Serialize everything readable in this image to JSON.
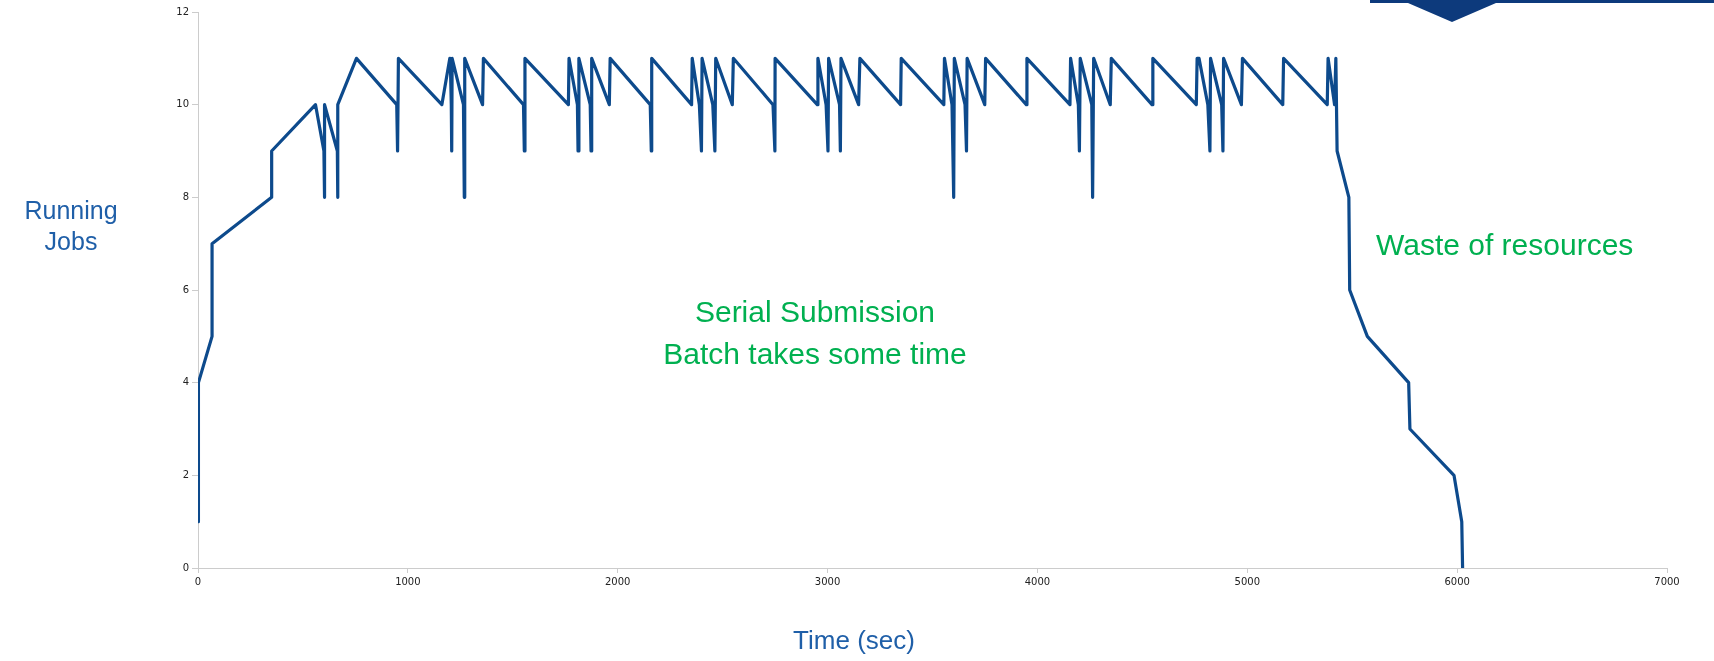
{
  "chart_data": {
    "type": "line",
    "xlabel": "Time (sec)",
    "ylabel": "Running Jobs",
    "annotations": [
      "Serial Submission\nBatch takes some time",
      "Waste of resources"
    ],
    "xlim": [
      0,
      7000
    ],
    "xticks": [
      0,
      1000,
      2000,
      3000,
      4000,
      5000,
      6000,
      7000
    ],
    "ylim": [
      0,
      12
    ],
    "yticks": [
      0,
      2,
      4,
      6,
      8,
      10,
      12
    ],
    "grid": false,
    "legend": false,
    "marker": "none",
    "line_style": "solid",
    "series": [
      {
        "color": "#0d4a8c",
        "x": [
          0,
          2,
          67,
          67,
          351,
          351,
          560,
          600,
          603,
          603,
          664,
          666,
          666,
          755,
          947,
          951,
          955,
          1162,
          1200,
          1202,
          1207,
          1209,
          1211,
          1265,
          1269,
          1271,
          1356,
          1360,
          1551,
          1555,
          1558,
          1765,
          1768,
          1808,
          1811,
          1815,
          1869,
          1873,
          1876,
          1960,
          1964,
          2155,
          2160,
          2162,
          2352,
          2355,
          2389,
          2399,
          2402,
          2453,
          2463,
          2467,
          2546,
          2551,
          2740,
          2749,
          2750,
          2951,
          2954,
          2993,
          3002,
          3005,
          3057,
          3061,
          3064,
          3148,
          3154,
          3348,
          3351,
          3554,
          3557,
          3593,
          3601,
          3604,
          3655,
          3662,
          3665,
          3749,
          3753,
          3947,
          3950,
          4155,
          4158,
          4195,
          4200,
          4204,
          4259,
          4263,
          4268,
          4347,
          4352,
          4546,
          4550,
          4757,
          4761,
          4770,
          4812,
          4822,
          4825,
          4878,
          4884,
          4887,
          4972,
          4977,
          5169,
          5173,
          5381,
          5385,
          5416,
          5422,
          5428,
          5484,
          5488,
          5572,
          5769,
          5775,
          5985,
          6022,
          6026
        ],
        "values": [
          1,
          4,
          5,
          7,
          8,
          9,
          10,
          9,
          8,
          10,
          9,
          8,
          10,
          11,
          10,
          9,
          11,
          10,
          11,
          11,
          10,
          9,
          11,
          10,
          8,
          11,
          10,
          11,
          10,
          9,
          11,
          10,
          11,
          10,
          9,
          11,
          10,
          9,
          11,
          10,
          11,
          10,
          9,
          11,
          10,
          11,
          10,
          9,
          11,
          10,
          9,
          11,
          10,
          11,
          10,
          9,
          11,
          10,
          11,
          10,
          9,
          11,
          10,
          9,
          11,
          10,
          11,
          10,
          11,
          10,
          11,
          10,
          8,
          11,
          10,
          9,
          11,
          10,
          11,
          10,
          11,
          10,
          11,
          10,
          9,
          11,
          10,
          8,
          11,
          10,
          11,
          10,
          11,
          10,
          11,
          11,
          10,
          9,
          11,
          10,
          9,
          11,
          10,
          11,
          10,
          11,
          10,
          11,
          10,
          11,
          9,
          8,
          6,
          5,
          4,
          3,
          2,
          1,
          0
        ]
      }
    ]
  }
}
